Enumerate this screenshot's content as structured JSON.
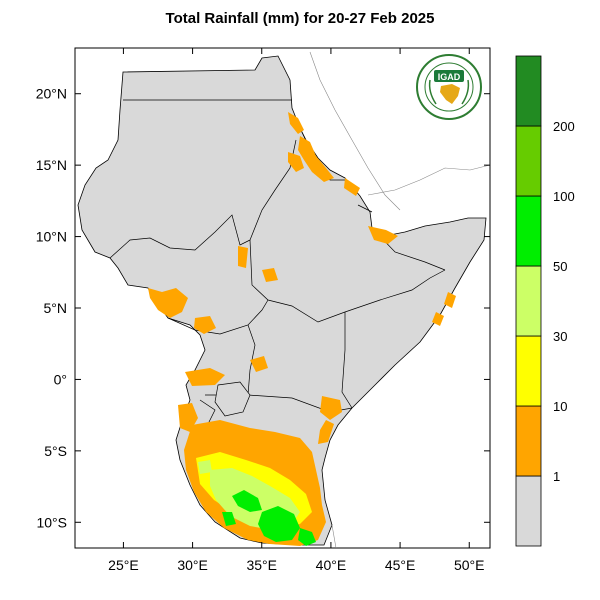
{
  "title": "Total Rainfall (mm) for 20-27 Feb 2025",
  "map": {
    "lon_range": [
      21.5,
      51.5
    ],
    "lat_range": [
      -11.8,
      23.2
    ],
    "lon_ticks": [
      {
        "value": 25,
        "label": "25°E"
      },
      {
        "value": 30,
        "label": "30°E"
      },
      {
        "value": 35,
        "label": "35°E"
      },
      {
        "value": 40,
        "label": "40°E"
      },
      {
        "value": 45,
        "label": "45°E"
      },
      {
        "value": 50,
        "label": "50°E"
      }
    ],
    "lat_ticks": [
      {
        "value": 20,
        "label": "20°N"
      },
      {
        "value": 15,
        "label": "15°N"
      },
      {
        "value": 10,
        "label": "10°N"
      },
      {
        "value": 5,
        "label": "5°N"
      },
      {
        "value": 0,
        "label": "0°"
      },
      {
        "value": -5,
        "label": "5°S"
      },
      {
        "value": -10,
        "label": "10°S"
      }
    ],
    "land_color": "#d9d9d9",
    "border_color": "#000000"
  },
  "colorbar": {
    "labels": [
      "1",
      "10",
      "30",
      "50",
      "100",
      "200"
    ],
    "colors": [
      "#d9d9d9",
      "#ffa500",
      "#ffff00",
      "#ccff66",
      "#00ee00",
      "#66cc00",
      "#228b22"
    ]
  },
  "logo": {
    "text": "IGAD",
    "colors": {
      "ring": "#2e7d32",
      "badge": "#1b7a3a",
      "map": "#e6a817"
    }
  }
}
